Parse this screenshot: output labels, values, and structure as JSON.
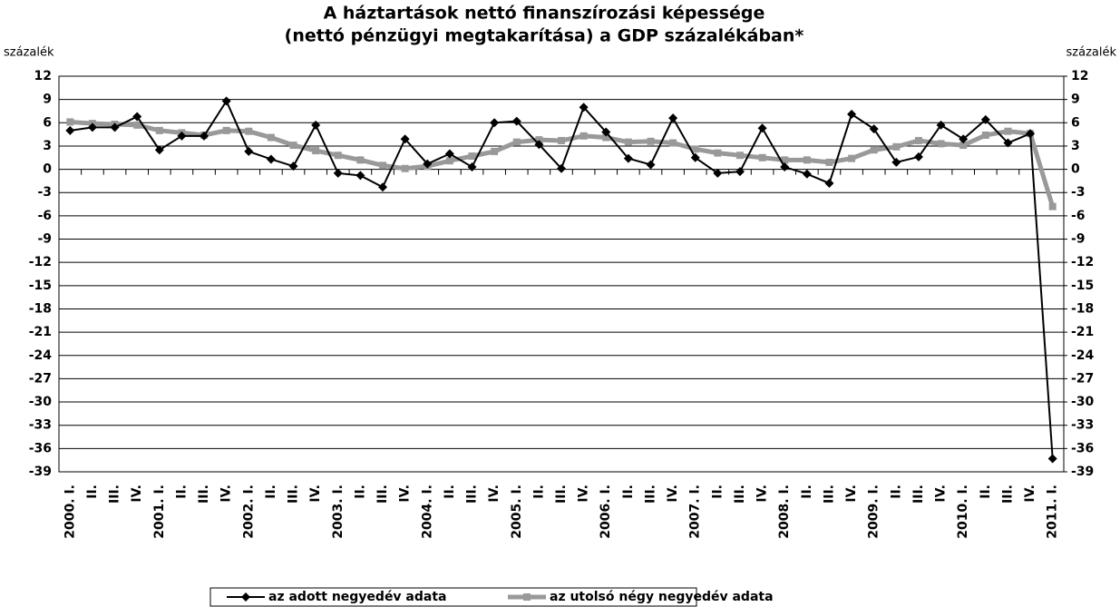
{
  "chart_data": {
    "type": "line",
    "title": [
      "A háztartások nettó finanszírozási képessége",
      "(nettó pénzügyi megtakarítása) a GDP százalékában*"
    ],
    "y_label": "százalék",
    "y2_label": "százalék",
    "categories": [
      "2000. I.",
      "II.",
      "III.",
      "IV.",
      "2001. I.",
      "II.",
      "III.",
      "IV.",
      "2002. I.",
      "II.",
      "III.",
      "IV.",
      "2003. I.",
      "II.",
      "III.",
      "IV.",
      "2004. I.",
      "II.",
      "III.",
      "IV.",
      "2005. I.",
      "II.",
      "III.",
      "IV.",
      "2006. I.",
      "II.",
      "III.",
      "IV.",
      "2007. I.",
      "II.",
      "III.",
      "IV.",
      "2008. I.",
      "II.",
      "III.",
      "IV.",
      "2009. I.",
      "II.",
      "III.",
      "IV.",
      "2010. I.",
      "II.",
      "III.",
      "IV.",
      "2011. I."
    ],
    "series": [
      {
        "name": "az adott negyedév adata",
        "color": "#000000",
        "marker": "diamond",
        "values": [
          5.0,
          5.4,
          5.4,
          6.8,
          2.5,
          4.3,
          4.3,
          8.8,
          2.3,
          1.3,
          0.4,
          5.7,
          -0.5,
          -0.8,
          -2.3,
          3.9,
          0.7,
          2.0,
          0.3,
          6.0,
          6.2,
          3.2,
          0.1,
          8.0,
          4.8,
          1.4,
          0.6,
          6.6,
          1.5,
          -0.5,
          -0.3,
          5.3,
          0.3,
          -0.6,
          -1.8,
          7.1,
          5.2,
          0.9,
          1.6,
          5.7,
          3.9,
          6.4,
          3.4,
          4.6,
          -37.3
        ]
      },
      {
        "name": "az utolsó négy negyedév adata",
        "color": "#999999",
        "marker": "square",
        "values": [
          6.1,
          5.9,
          5.8,
          5.7,
          5.0,
          4.7,
          4.4,
          5.0,
          4.9,
          4.1,
          3.1,
          2.4,
          1.8,
          1.2,
          0.5,
          0.1,
          0.4,
          1.1,
          1.7,
          2.3,
          3.5,
          3.8,
          3.7,
          4.3,
          4.1,
          3.5,
          3.6,
          3.4,
          2.6,
          2.1,
          1.8,
          1.5,
          1.2,
          1.2,
          0.9,
          1.4,
          2.5,
          2.9,
          3.7,
          3.3,
          3.1,
          4.4,
          4.9,
          4.6,
          -4.8
        ]
      }
    ],
    "ylim": [
      -39,
      12
    ],
    "yticks": [
      12,
      9,
      6,
      3,
      0,
      -3,
      -6,
      -9,
      -12,
      -15,
      -18,
      -21,
      -24,
      -27,
      -30,
      -33,
      -36,
      -39
    ],
    "y2lim": [
      -39,
      12
    ],
    "y2ticks": [
      12,
      9,
      6,
      3,
      0,
      -3,
      -6,
      -9,
      -12,
      -15,
      -18,
      -21,
      -24,
      -27,
      -30,
      -33,
      -36,
      -39
    ],
    "grid": true,
    "legend": "bottom"
  }
}
